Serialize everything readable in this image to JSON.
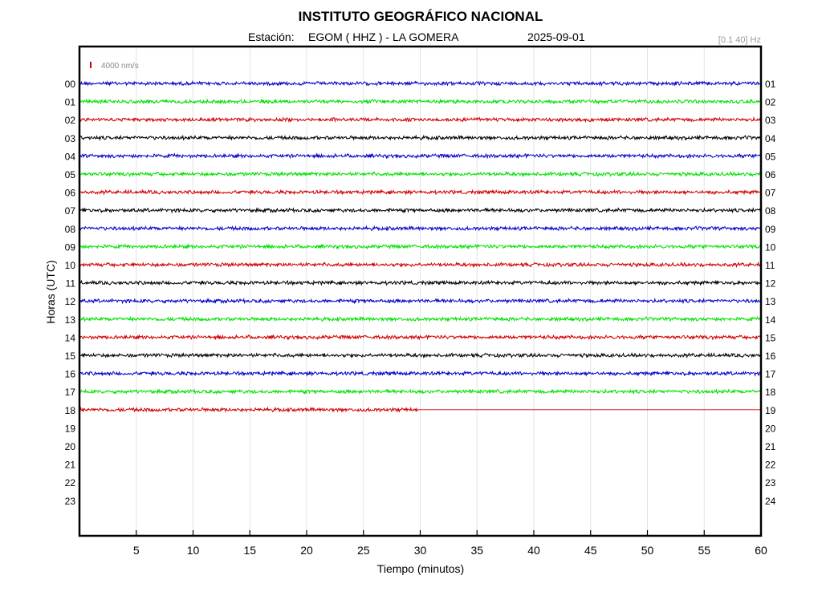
{
  "header": {
    "title": "INSTITUTO GEOGRÁFICO NACIONAL",
    "station_label": "Estación:",
    "station": "EGOM ( HHZ ) - LA GOMERA",
    "date": "2025-09-01",
    "filter": "[0.1 40] Hz"
  },
  "chart_data": {
    "type": "line",
    "title": "INSTITUTO GEOGRÁFICO NACIONAL",
    "xlabel": "Tiempo (minutos)",
    "ylabel": "Horas (UTC)",
    "xlim": [
      0,
      60
    ],
    "x_ticks": [
      "5",
      "10",
      "15",
      "20",
      "25",
      "30",
      "35",
      "40",
      "45",
      "50",
      "55",
      "60"
    ],
    "left_hour_labels": [
      "00",
      "01",
      "02",
      "03",
      "04",
      "05",
      "06",
      "07",
      "08",
      "09",
      "10",
      "11",
      "12",
      "13",
      "14",
      "15",
      "16",
      "17",
      "18",
      "19",
      "20",
      "21",
      "22",
      "23"
    ],
    "right_hour_labels": [
      "01",
      "02",
      "03",
      "04",
      "05",
      "06",
      "07",
      "08",
      "09",
      "10",
      "11",
      "12",
      "13",
      "14",
      "15",
      "16",
      "17",
      "18",
      "19",
      "20",
      "21",
      "22",
      "23",
      "24"
    ],
    "scale_label": "4000 nm/s",
    "grid": "vertical",
    "colors": [
      "#0000c8",
      "#00e000",
      "#d00000",
      "#000000"
    ],
    "traces": [
      {
        "hour": "00",
        "end_minute": 60
      },
      {
        "hour": "01",
        "end_minute": 60
      },
      {
        "hour": "02",
        "end_minute": 60
      },
      {
        "hour": "03",
        "end_minute": 60
      },
      {
        "hour": "04",
        "end_minute": 60
      },
      {
        "hour": "05",
        "end_minute": 60
      },
      {
        "hour": "06",
        "end_minute": 60
      },
      {
        "hour": "07",
        "end_minute": 60
      },
      {
        "hour": "08",
        "end_minute": 60
      },
      {
        "hour": "09",
        "end_minute": 60
      },
      {
        "hour": "10",
        "end_minute": 60
      },
      {
        "hour": "11",
        "end_minute": 60
      },
      {
        "hour": "12",
        "end_minute": 60
      },
      {
        "hour": "13",
        "end_minute": 60
      },
      {
        "hour": "14",
        "end_minute": 60
      },
      {
        "hour": "15",
        "end_minute": 60
      },
      {
        "hour": "16",
        "end_minute": 60
      },
      {
        "hour": "17",
        "end_minute": 60
      },
      {
        "hour": "18",
        "end_minute": 29.8
      }
    ]
  }
}
